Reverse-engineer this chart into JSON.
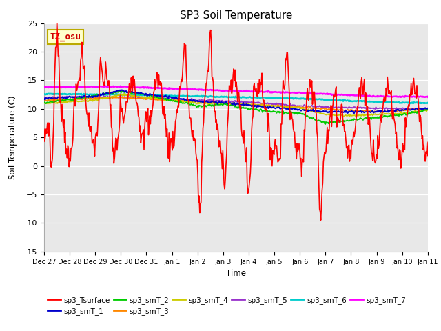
{
  "title": "SP3 Soil Temperature",
  "ylabel": "Soil Temperature (C)",
  "xlabel": "Time",
  "ylim": [
    -15,
    25
  ],
  "bg_color": "#e8e8e8",
  "annotation_text": "TZ_osu",
  "annotation_color": "#cc0000",
  "annotation_bg": "#ffffcc",
  "annotation_border": "#bbaa00",
  "series_colors": {
    "sp3_Tsurface": "#ff0000",
    "sp3_smT_1": "#0000cc",
    "sp3_smT_2": "#00cc00",
    "sp3_smT_3": "#ff8800",
    "sp3_smT_4": "#cccc00",
    "sp3_smT_5": "#9933cc",
    "sp3_smT_6": "#00cccc",
    "sp3_smT_7": "#ff00ff"
  },
  "tick_labels": [
    "Dec 27",
    "Dec 28",
    "Dec 29",
    "Dec 30",
    "Dec 31",
    "Jan 1",
    "Jan 2",
    "Jan 3",
    "Jan 4",
    "Jan 5",
    "Jan 6",
    "Jan 7",
    "Jan 8",
    "Jan 9",
    "Jan 10",
    "Jan 11"
  ],
  "num_points": 600
}
